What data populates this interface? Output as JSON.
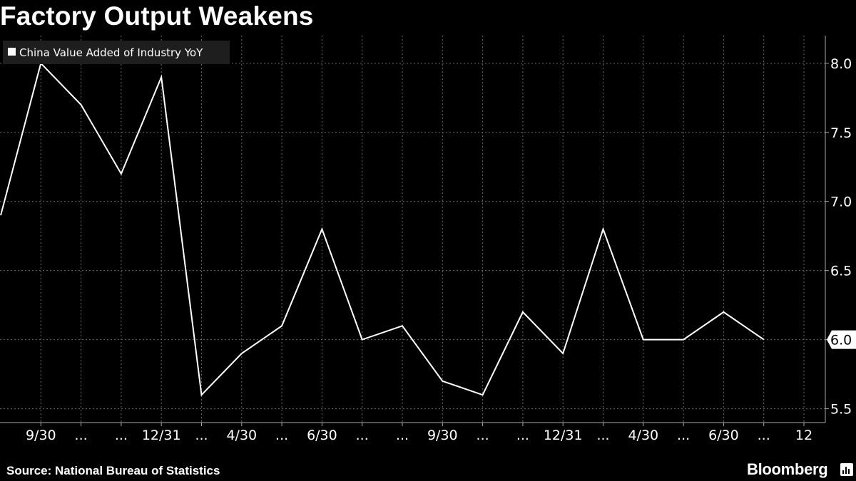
{
  "title": "Factory Output Weakens",
  "source": "Source: National Bureau of Statistics",
  "brand": "Bloomberg",
  "brand_icon": "bloomberg-terminal-icon",
  "colors": {
    "background": "#000000",
    "line": "#ffffff",
    "grid": "#6a6a6a",
    "legend_bg": "#1e1e1e"
  },
  "chart_data": {
    "type": "line",
    "title": "Factory Output Weakens",
    "series": [
      {
        "name": "China Value Added of Industry YoY",
        "values": [
          6.9,
          8.0,
          7.7,
          7.2,
          7.9,
          5.6,
          5.9,
          6.1,
          6.8,
          6.0,
          6.1,
          5.7,
          5.6,
          6.2,
          5.9,
          6.8,
          6.0,
          6.0,
          6.2,
          6.0
        ]
      }
    ],
    "x_tick_labels": [
      "9/30",
      "...",
      "...",
      "12/31",
      "...",
      "4/30",
      "...",
      "6/30",
      "...",
      "...",
      "9/30",
      "...",
      "...",
      "12/31",
      "...",
      "4/30",
      "...",
      "6/30",
      "...",
      "12"
    ],
    "y_ticks": [
      5.5,
      6.0,
      6.5,
      7.0,
      7.5,
      8.0
    ],
    "y_tick_labels": [
      "5.5",
      "6.0",
      "6.5",
      "7.0",
      "7.5",
      "8.0"
    ],
    "ylim": [
      5.4,
      8.2
    ],
    "last_value_label": "6.0",
    "grid": true,
    "legend_position": "top-left"
  }
}
